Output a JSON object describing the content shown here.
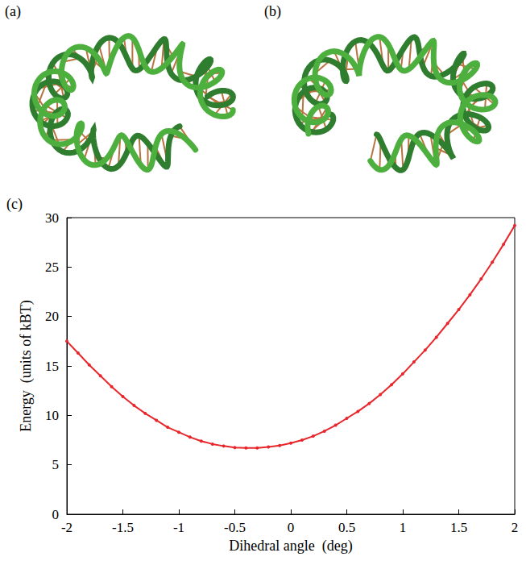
{
  "panels": [
    {
      "label": "(a)"
    },
    {
      "label": "(b)"
    }
  ],
  "chart_data": {
    "panel_label": "(c)",
    "type": "line",
    "x_label": "Dihedral angle  (deg)",
    "y_label": "Energy  (units of kBT)",
    "x": [
      -2.0,
      -1.9,
      -1.8,
      -1.7,
      -1.6,
      -1.5,
      -1.4,
      -1.3,
      -1.2,
      -1.1,
      -1.0,
      -0.9,
      -0.8,
      -0.7,
      -0.6,
      -0.5,
      -0.4,
      -0.3,
      -0.2,
      -0.1,
      0.0,
      0.1,
      0.2,
      0.3,
      0.4,
      0.5,
      0.6,
      0.7,
      0.8,
      0.9,
      1.0,
      1.1,
      1.2,
      1.3,
      1.4,
      1.5,
      1.6,
      1.7,
      1.8,
      1.9,
      2.0
    ],
    "values": [
      17.5,
      16.3,
      15.1,
      14.0,
      12.9,
      11.9,
      11.0,
      10.2,
      9.5,
      8.8,
      8.3,
      7.8,
      7.4,
      7.1,
      6.9,
      6.75,
      6.7,
      6.7,
      6.8,
      6.95,
      7.2,
      7.5,
      7.9,
      8.4,
      9.0,
      9.7,
      10.4,
      11.2,
      12.1,
      13.1,
      14.2,
      15.4,
      16.6,
      17.9,
      19.3,
      20.7,
      22.2,
      23.8,
      25.5,
      27.3,
      29.2
    ],
    "color": "#e8262b",
    "marker": "circle",
    "xlim": [
      -2,
      2
    ],
    "xticks": [
      -2,
      -1.5,
      -1,
      -0.5,
      0,
      0.5,
      1,
      1.5,
      2
    ],
    "ylim": [
      0,
      30
    ],
    "yticks": [
      0,
      5,
      10,
      15,
      20,
      25,
      30
    ],
    "grid": false
  }
}
